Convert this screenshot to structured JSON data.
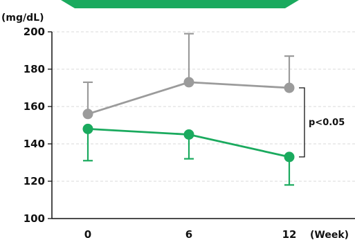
{
  "colors": {
    "series_gray": "#9b9b9b",
    "series_green": "#1aaa5e",
    "axis": "#111111",
    "grid": "#d8d8d8",
    "banner": "#1aaa5e"
  },
  "chart_data": {
    "type": "line",
    "ylabel": "(mg/dL)",
    "xlabel": "(Week)",
    "x": [
      0,
      6,
      12
    ],
    "x_tick_labels": [
      "0",
      "6",
      "12"
    ],
    "ylim": [
      100,
      200
    ],
    "y_ticks": [
      100,
      120,
      140,
      160,
      180,
      200
    ],
    "grid": true,
    "series": [
      {
        "color": "#9b9b9b",
        "values": [
          156,
          173,
          170
        ],
        "error_upper": [
          173,
          199,
          187
        ]
      },
      {
        "color": "#1aaa5e",
        "values": [
          148,
          145,
          133
        ],
        "error_lower": [
          131,
          132,
          118
        ]
      }
    ],
    "annotations": [
      {
        "text": "p<0.05",
        "between_series_at_x": 12
      }
    ]
  }
}
